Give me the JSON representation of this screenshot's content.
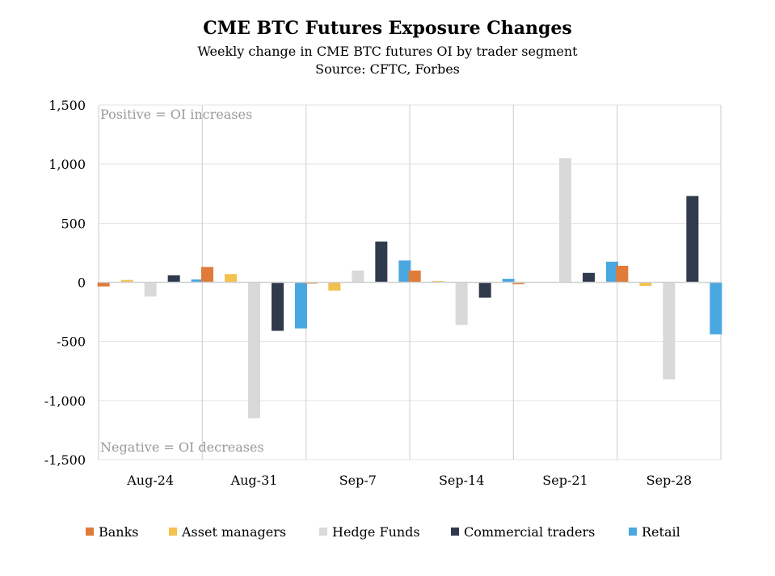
{
  "chart_data": {
    "type": "bar",
    "title": "CME BTC Futures Exposure Changes",
    "subtitle": "Weekly change in CME BTC futures OI by trader segment",
    "source": "Source: CFTC, Forbes",
    "categories": [
      "Aug-24",
      "Aug-31",
      "Sep-7",
      "Sep-14",
      "Sep-21",
      "Sep-28"
    ],
    "series": [
      {
        "name": "Banks",
        "color": "#e07b39",
        "values": [
          -35,
          130,
          -10,
          100,
          -15,
          140
        ]
      },
      {
        "name": "Asset managers",
        "color": "#f2c14e",
        "values": [
          20,
          70,
          -70,
          10,
          0,
          -30
        ]
      },
      {
        "name": "Hedge Funds",
        "color": "#d9d9d9",
        "values": [
          -120,
          -1150,
          100,
          -360,
          1050,
          -820
        ]
      },
      {
        "name": "Commercial traders",
        "color": "#2f3a4c",
        "values": [
          60,
          -410,
          345,
          -130,
          80,
          730
        ]
      },
      {
        "name": "Retail",
        "color": "#4aa8e0",
        "values": [
          25,
          -390,
          185,
          30,
          175,
          -440
        ]
      }
    ],
    "ylim": [
      -1500,
      1500
    ],
    "yticks": [
      1500,
      1000,
      500,
      0,
      -500,
      -1000,
      -1500
    ],
    "ytick_labels": [
      "1,500",
      "1,000",
      "500",
      "0",
      "-500",
      "-1,000",
      "-1,500"
    ],
    "annotations": {
      "positive": "Positive = OI increases",
      "negative": "Negative = OI decreases"
    },
    "grid": true,
    "legend": "bottom"
  }
}
